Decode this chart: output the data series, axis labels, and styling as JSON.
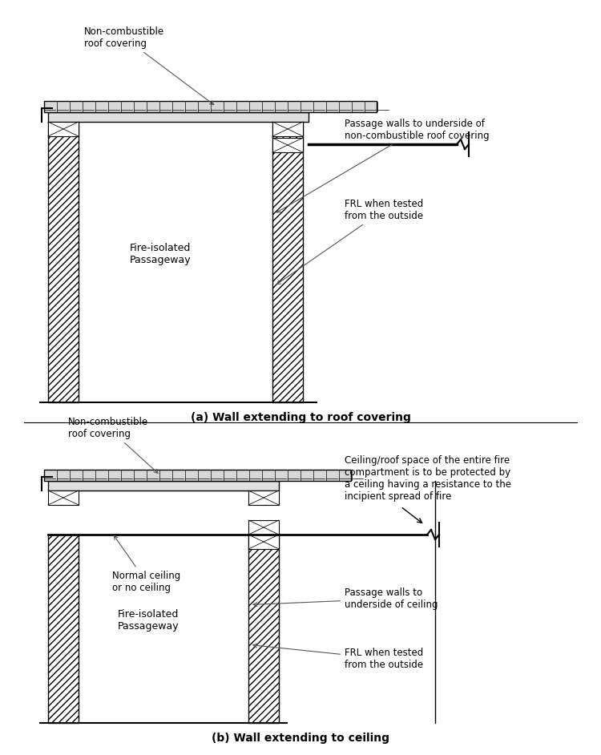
{
  "figure_width": 7.5,
  "figure_height": 9.42,
  "bg_color": "#ffffff",
  "line_color": "#000000",
  "hatch_color": "#000000",
  "title_a": "(a) Wall extending to roof covering",
  "title_b": "(b) Wall extending to ceiling",
  "label_non_comb_roof_a": "Non-combustible\nroof covering",
  "label_passage_walls_a": "Passage walls to underside of\nnon-combustible roof covering",
  "label_frl_a": "FRL when tested\nfrom the outside",
  "label_passageway_a": "Fire-isolated\nPassageway",
  "label_non_comb_roof_b": "Non-combustible\nroof covering",
  "label_normal_ceiling": "Normal ceiling\nor no ceiling",
  "label_ceiling_roof_space": "Ceiling/roof space of the entire fire\ncompartment is to be protected by\na ceiling having a resistance to the\nincipient spread of fire",
  "label_passage_walls_b": "Passage walls to\nunderside of ceiling",
  "label_frl_b": "FRL when tested\nfrom the outside",
  "label_passageway_b": "Fire-isolated\nPassageway"
}
